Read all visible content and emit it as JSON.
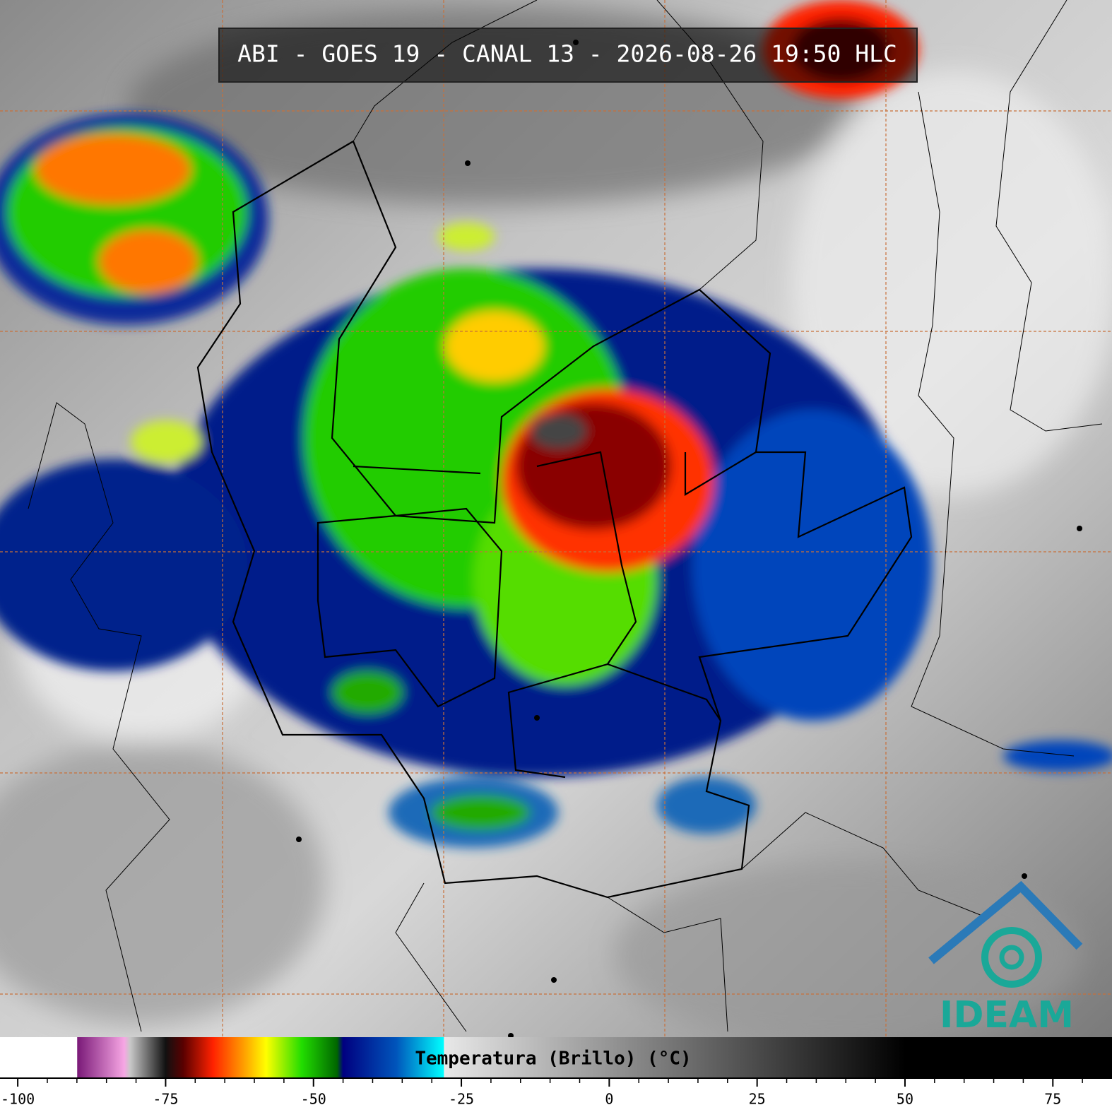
{
  "header": {
    "title": "ABI - GOES 19 - CANAL 13 - 2026-08-26 19:50 HLC"
  },
  "logo": {
    "text": "IDEAM"
  },
  "colorbar": {
    "label": "Temperatura (Brillo) (°C)",
    "xlim": [
      -103,
      85
    ],
    "xticks": [
      -100,
      -75,
      -50,
      -25,
      0,
      25,
      50,
      75
    ],
    "minor_ticks": [
      -95,
      -90,
      -85,
      -80,
      -70,
      -65,
      -60,
      -55,
      -45,
      -40,
      -35,
      -30,
      -20,
      -15,
      -10,
      -5,
      5,
      10,
      15,
      20,
      30,
      35,
      40,
      45,
      55,
      60,
      65,
      70,
      80
    ],
    "stops": [
      {
        "value": -103,
        "color": "#ffffff"
      },
      {
        "value": -90,
        "color": "#ffffff"
      },
      {
        "value": -89.9,
        "color": "#7a1a78"
      },
      {
        "value": -82,
        "color": "#f7a6e4"
      },
      {
        "value": -81,
        "color": "#c8c8c8"
      },
      {
        "value": -75,
        "color": "#111111"
      },
      {
        "value": -72,
        "color": "#5a0000"
      },
      {
        "value": -67,
        "color": "#ff2200"
      },
      {
        "value": -62,
        "color": "#ff9900"
      },
      {
        "value": -58,
        "color": "#ffff00"
      },
      {
        "value": -52,
        "color": "#22dd00"
      },
      {
        "value": -46,
        "color": "#006600"
      },
      {
        "value": -45,
        "color": "#000080"
      },
      {
        "value": -36,
        "color": "#0055bb"
      },
      {
        "value": -28,
        "color": "#00ffff"
      },
      {
        "value": -27.9,
        "color": "#e8e8e8"
      },
      {
        "value": 50,
        "color": "#000000"
      },
      {
        "value": 85,
        "color": "#000000"
      }
    ]
  }
}
